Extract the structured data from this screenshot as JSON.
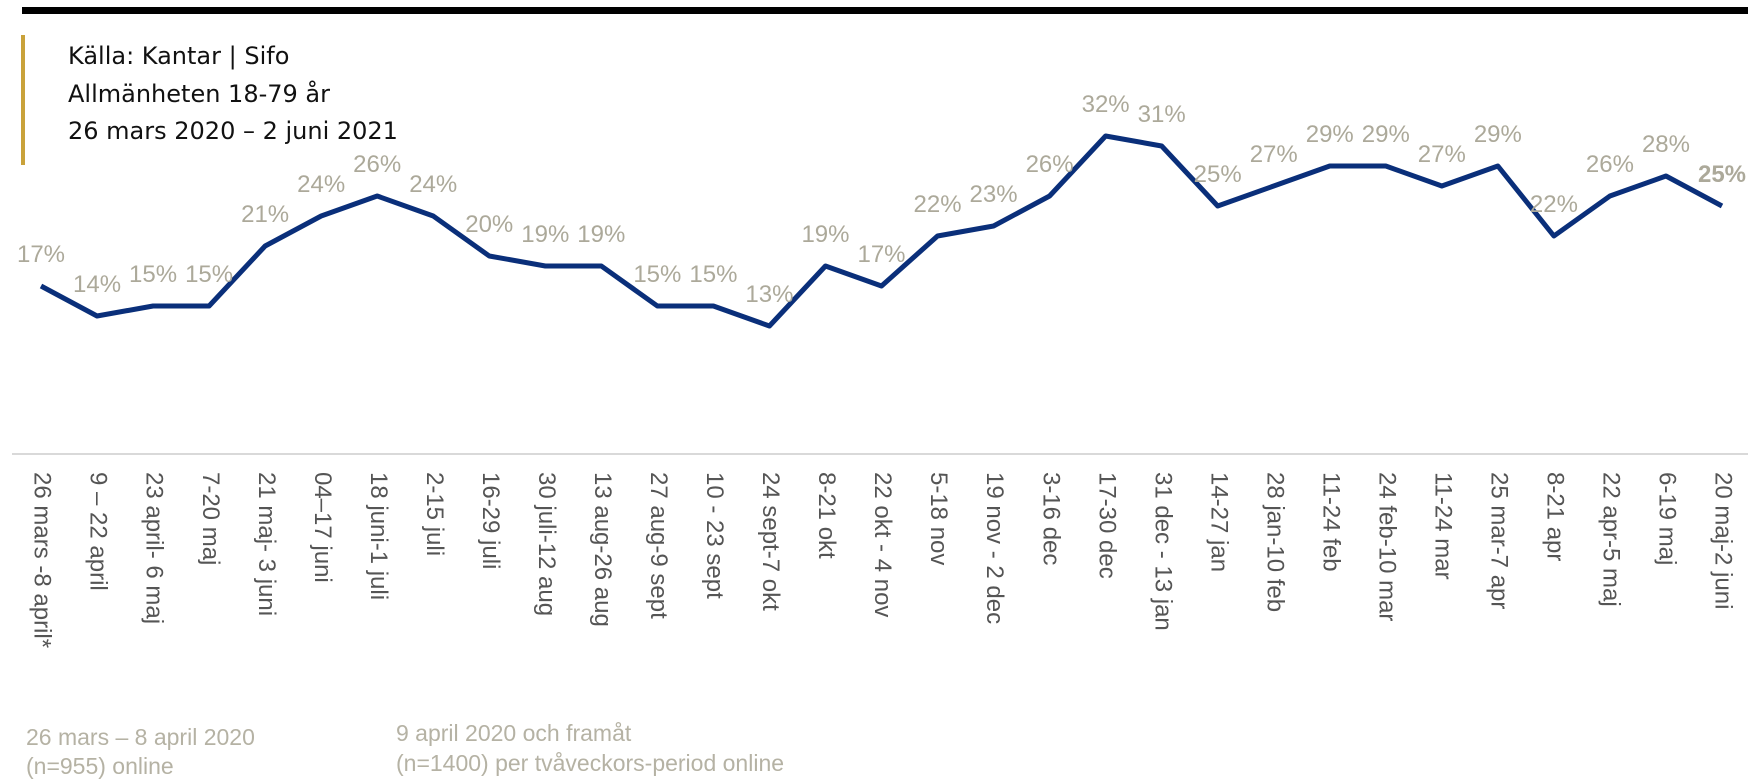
{
  "chart_data": {
    "type": "line",
    "source_lines": [
      "Källa: Kantar | Sifo",
      "Allmänheten 18-79 år",
      "26 mars 2020 – 2 juni 2021"
    ],
    "categories": [
      "26 mars -8 april*",
      "9 – 22 april",
      "23 april- 6 maj",
      "7-20 maj",
      "21 maj- 3 juni",
      "04–17 juni",
      "18 juni-1 juli",
      "2-15 juli",
      "16-29 juli",
      "30 juli-12 aug",
      "13 aug-26 aug",
      "27 aug-9 sept",
      "10 - 23 sept",
      "24 sept-7 okt",
      "8-21 okt",
      "22 okt - 4 nov",
      "5-18 nov",
      "19 nov - 2 dec",
      "3-16 dec",
      "17-30 dec",
      "31 dec - 13 jan",
      "14-27 jan",
      "28 jan-10 feb",
      "11-24 feb",
      "24 feb-10 mar",
      "11-24 mar",
      "25 mar-7 apr",
      "8-21 apr",
      "22 apr-5 maj",
      "6-19 maj",
      "20 maj-2 juni"
    ],
    "series": [
      {
        "color": "#0a2f7a",
        "values": [
          17,
          14,
          15,
          15,
          21,
          24,
          26,
          24,
          20,
          19,
          19,
          15,
          15,
          13,
          19,
          17,
          22,
          23,
          26,
          32,
          31,
          25,
          27,
          29,
          29,
          27,
          29,
          22,
          26,
          28,
          25
        ],
        "value_labels": [
          "17%",
          "14%",
          "15%",
          "15%",
          "21%",
          "24%",
          "26%",
          "24%",
          "20%",
          "19%",
          "19%",
          "15%",
          "15%",
          "13%",
          "19%",
          "17%",
          "22%",
          "23%",
          "26%",
          "32%",
          "31%",
          "25%",
          "27%",
          "29%",
          "29%",
          "27%",
          "29%",
          "22%",
          "26%",
          "28%",
          "25%"
        ]
      }
    ],
    "emphasized_index": 30,
    "notes": [
      [
        "26 mars – 8 april 2020",
        "(n=955) online"
      ],
      [
        "9 april 2020 och framåt",
        "(n=1400) per tvåveckors-period online"
      ]
    ]
  }
}
